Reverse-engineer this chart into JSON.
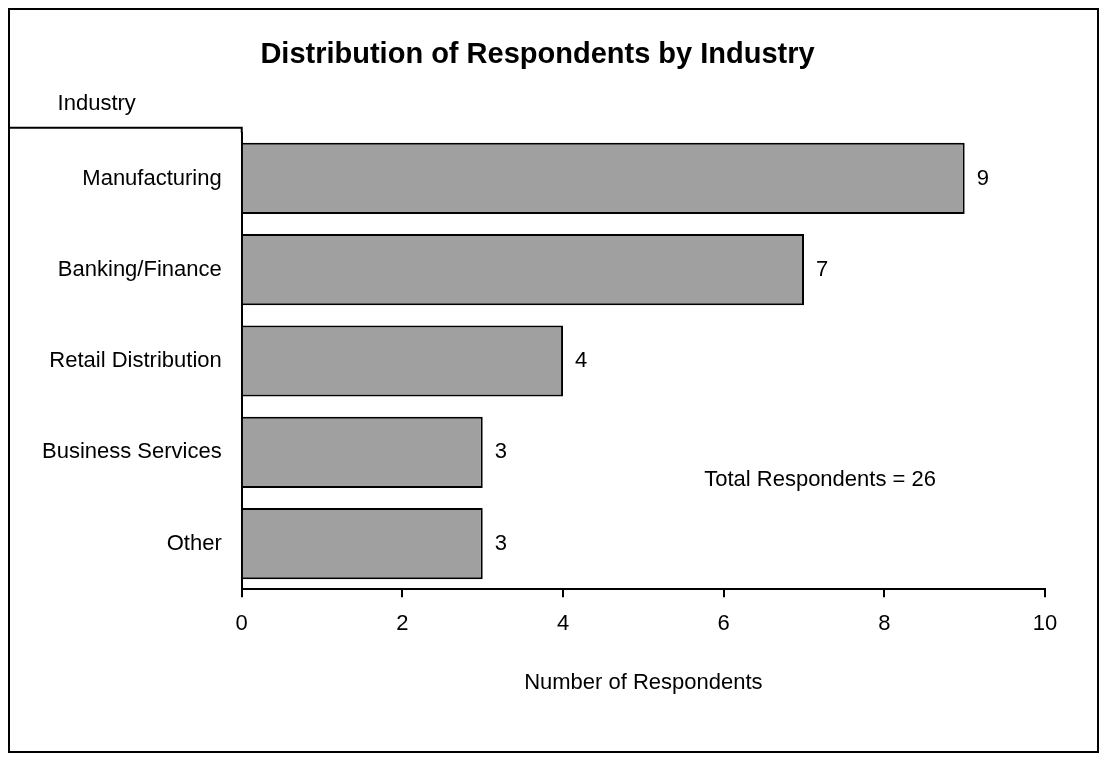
{
  "chart_data": {
    "type": "bar",
    "orientation": "horizontal",
    "title": "Distribution of Respondents by Industry",
    "ylabel": "Industry",
    "xlabel": "Number of Respondents",
    "categories": [
      "Manufacturing",
      "Banking/Finance",
      "Retail Distribution",
      "Business Services",
      "Other"
    ],
    "values": [
      9,
      7,
      4,
      3,
      3
    ],
    "color": "#a0a0a0",
    "data_labels": true,
    "xlim": [
      0,
      10
    ],
    "xticks": [
      0,
      2,
      4,
      6,
      8,
      10
    ],
    "grid": false,
    "legend": false,
    "annotations": [
      "Total Respondents = 26"
    ]
  }
}
